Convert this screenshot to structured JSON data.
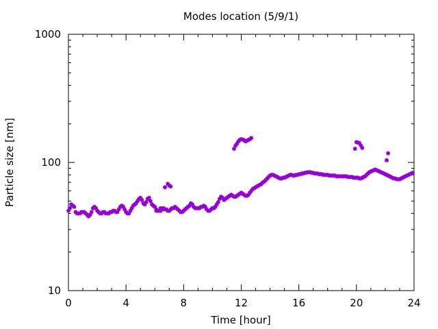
{
  "chart_data": {
    "type": "scatter",
    "title": "Modes location (5/9/1)",
    "xlabel": "Time [hour]",
    "ylabel": "Particle size [nm]",
    "xlim": [
      0,
      24
    ],
    "ylim": [
      10,
      1000
    ],
    "yscale": "log",
    "x_ticks": [
      0,
      4,
      8,
      12,
      16,
      20,
      24
    ],
    "x_tick_labels": [
      "0",
      "4",
      "8",
      "12",
      "16",
      "20",
      "24"
    ],
    "y_ticks": [
      10,
      100,
      1000
    ],
    "y_tick_labels": [
      "10",
      "100",
      "1000"
    ],
    "grid": false,
    "legend": "none",
    "marker_color": "#9400d3",
    "series": [
      {
        "x": [
          0.0,
          0.1,
          0.2,
          0.3,
          0.4,
          0.5,
          0.6,
          0.7,
          0.8,
          0.9,
          1.0,
          1.1,
          1.2,
          1.3,
          1.4,
          1.5,
          1.6,
          1.7,
          1.8,
          1.9,
          2.0,
          2.1,
          2.2,
          2.3,
          2.4,
          2.5,
          2.6,
          2.7,
          2.8,
          2.9,
          3.0,
          3.1,
          3.2,
          3.3,
          3.4,
          3.5,
          3.6,
          3.7,
          3.8,
          3.9,
          4.0,
          4.1,
          4.2,
          4.3,
          4.4,
          4.5,
          4.6,
          4.7,
          4.8,
          4.9,
          5.0,
          5.1,
          5.2,
          5.3,
          5.4,
          5.5,
          5.6,
          5.7,
          5.8,
          5.9,
          6.0,
          6.1,
          6.2,
          6.3,
          6.4,
          6.5,
          6.6,
          6.7,
          6.8,
          6.9,
          7.0,
          7.1,
          7.2,
          7.3,
          7.4,
          7.5,
          7.6,
          7.7,
          7.8,
          7.9,
          8.0,
          8.1,
          8.2,
          8.3,
          8.4,
          8.5,
          8.6,
          8.7,
          8.8,
          8.9,
          9.0,
          9.1,
          9.2,
          9.3,
          9.4,
          9.5,
          9.6,
          9.7,
          9.8,
          9.9,
          10.0,
          10.1,
          10.2,
          10.3,
          10.4,
          10.5,
          10.6,
          10.7,
          10.8,
          10.9,
          11.0,
          11.1,
          11.2,
          11.3,
          11.4,
          11.5,
          11.6,
          11.7,
          11.8,
          11.9,
          12.0,
          12.1,
          12.2,
          12.3,
          12.4,
          12.5,
          12.6,
          12.7,
          12.8,
          12.9,
          13.0,
          13.1,
          13.2,
          13.3,
          13.4,
          13.5,
          13.6,
          13.7,
          13.8,
          13.9,
          14.0,
          14.1,
          14.2,
          14.3,
          14.4,
          14.5,
          14.6,
          14.7,
          14.8,
          14.9,
          15.0,
          15.1,
          15.2,
          15.3,
          15.4,
          15.5,
          15.6,
          15.7,
          15.8,
          15.9,
          16.0,
          16.1,
          16.2,
          16.3,
          16.4,
          16.5,
          16.6,
          16.7,
          16.8,
          16.9,
          17.0,
          17.1,
          17.2,
          17.3,
          17.4,
          17.5,
          17.6,
          17.7,
          17.8,
          17.9,
          18.0,
          18.1,
          18.2,
          18.3,
          18.4,
          18.5,
          18.6,
          18.7,
          18.8,
          18.9,
          19.0,
          19.1,
          19.2,
          19.3,
          19.4,
          19.5,
          19.6,
          19.7,
          19.8,
          19.9,
          20.0,
          20.1,
          20.2,
          20.3,
          20.4,
          20.5,
          20.6,
          20.7,
          20.8,
          20.9,
          21.0,
          21.1,
          21.2,
          21.3,
          21.4,
          21.5,
          21.6,
          21.7,
          21.8,
          21.9,
          22.0,
          22.1,
          22.2,
          22.3,
          22.4,
          22.5,
          22.6,
          22.7,
          22.8,
          22.9,
          23.0,
          23.1,
          23.2,
          23.3,
          23.4,
          23.5,
          23.6,
          23.7,
          23.8,
          23.9,
          6.1,
          6.4,
          6.7,
          6.9,
          7.0,
          7.1,
          11.5,
          11.6,
          11.7,
          11.8,
          11.9,
          12.0,
          12.1,
          12.2,
          12.3,
          12.4,
          12.5,
          12.6,
          12.7,
          19.9,
          20.0,
          20.1,
          20.2,
          20.3,
          20.4,
          22.1,
          22.2
        ],
        "y": [
          42,
          44,
          47,
          46,
          45,
          41,
          40,
          40,
          40,
          41,
          41,
          41,
          40,
          39,
          38,
          39,
          41,
          44,
          45,
          44,
          42,
          41,
          40,
          40,
          41,
          41,
          40,
          40,
          40,
          41,
          41,
          42,
          42,
          41,
          41,
          43,
          45,
          46,
          45,
          43,
          41,
          40,
          40,
          42,
          44,
          46,
          47,
          48,
          50,
          52,
          53,
          51,
          48,
          47,
          49,
          52,
          53,
          50,
          47,
          46,
          45,
          43,
          42,
          42,
          42,
          43,
          44,
          43,
          43,
          42,
          42,
          43,
          44,
          44,
          45,
          44,
          43,
          42,
          41,
          41,
          42,
          43,
          44,
          45,
          46,
          48,
          47,
          45,
          44,
          44,
          44,
          44,
          45,
          45,
          46,
          45,
          43,
          42,
          42,
          43,
          44,
          44,
          45,
          47,
          49,
          52,
          54,
          53,
          51,
          52,
          53,
          54,
          55,
          56,
          55,
          54,
          54,
          55,
          56,
          57,
          58,
          57,
          56,
          55,
          55,
          56,
          58,
          60,
          62,
          63,
          64,
          65,
          66,
          67,
          68,
          70,
          71,
          73,
          75,
          77,
          79,
          80,
          80,
          79,
          78,
          77,
          76,
          75,
          75,
          76,
          76,
          77,
          78,
          79,
          80,
          80,
          79,
          79,
          80,
          80,
          81,
          81,
          82,
          82,
          83,
          83,
          84,
          84,
          84,
          83,
          83,
          82,
          82,
          82,
          81,
          81,
          81,
          80,
          80,
          80,
          80,
          79,
          79,
          79,
          79,
          79,
          78,
          78,
          78,
          78,
          78,
          78,
          78,
          78,
          77,
          77,
          77,
          77,
          76,
          76,
          76,
          76,
          75,
          75,
          76,
          77,
          78,
          80,
          82,
          84,
          85,
          86,
          87,
          88,
          87,
          86,
          85,
          84,
          83,
          82,
          81,
          80,
          79,
          78,
          77,
          76,
          75,
          75,
          74,
          74,
          74,
          75,
          76,
          77,
          78,
          79,
          80,
          81,
          82,
          83,
          42,
          44,
          64,
          68,
          66,
          65,
          128,
          135,
          140,
          146,
          150,
          152,
          151,
          149,
          146,
          148,
          150,
          152,
          155,
          128,
          144,
          143,
          142,
          136,
          130,
          104,
          118
        ]
      }
    ]
  }
}
